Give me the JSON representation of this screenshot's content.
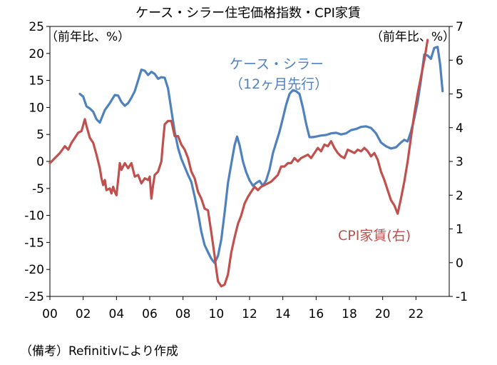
{
  "chart_data": {
    "type": "line",
    "title": "ケース・シラー住宅価格指数・CPI家賃",
    "left_axis": {
      "unit": "（前年比、%）",
      "ylim": [
        -25,
        25
      ],
      "ticks": [
        "25",
        "20",
        "15",
        "10",
        "5",
        "0",
        "-5",
        "-10",
        "-15",
        "-20",
        "-25"
      ]
    },
    "right_axis": {
      "unit": "（前年比、%）",
      "ylim": [
        -1,
        7
      ],
      "ticks": [
        "7",
        "6",
        "5",
        "4",
        "3",
        "2",
        "1",
        "0",
        "-1"
      ]
    },
    "x_axis": {
      "range": [
        2000,
        2024
      ],
      "ticks": [
        {
          "year": 2000,
          "label": "00"
        },
        {
          "year": 2002,
          "label": "02"
        },
        {
          "year": 2004,
          "label": "04"
        },
        {
          "year": 2006,
          "label": "06"
        },
        {
          "year": 2008,
          "label": "08"
        },
        {
          "year": 2010,
          "label": "10"
        },
        {
          "year": 2012,
          "label": "12"
        },
        {
          "year": 2014,
          "label": "14"
        },
        {
          "year": 2016,
          "label": "16"
        },
        {
          "year": 2018,
          "label": "18"
        },
        {
          "year": 2020,
          "label": "20"
        },
        {
          "year": 2022,
          "label": "22"
        }
      ]
    },
    "series": [
      {
        "name": "ケース・シラー（12ヶ月先行）",
        "label_line1": "ケース・シラー",
        "label_line2": "（12ヶ月先行）",
        "axis": "left",
        "color": "#4f81bd",
        "points": [
          [
            2001.8,
            12.5
          ],
          [
            2002.0,
            12.0
          ],
          [
            2002.2,
            10.2
          ],
          [
            2002.4,
            9.8
          ],
          [
            2002.6,
            9.2
          ],
          [
            2002.8,
            7.8
          ],
          [
            2003.0,
            7.2
          ],
          [
            2003.3,
            9.5
          ],
          [
            2003.6,
            10.8
          ],
          [
            2003.9,
            12.3
          ],
          [
            2004.1,
            12.2
          ],
          [
            2004.3,
            11.0
          ],
          [
            2004.5,
            10.3
          ],
          [
            2004.7,
            10.8
          ],
          [
            2004.9,
            11.8
          ],
          [
            2005.1,
            13.0
          ],
          [
            2005.3,
            15.0
          ],
          [
            2005.5,
            17.0
          ],
          [
            2005.7,
            16.8
          ],
          [
            2005.9,
            16.0
          ],
          [
            2006.1,
            16.6
          ],
          [
            2006.3,
            16.2
          ],
          [
            2006.5,
            15.3
          ],
          [
            2006.7,
            15.6
          ],
          [
            2006.9,
            15.5
          ],
          [
            2007.1,
            13.5
          ],
          [
            2007.3,
            9.5
          ],
          [
            2007.5,
            5.5
          ],
          [
            2007.7,
            2.5
          ],
          [
            2007.9,
            0.5
          ],
          [
            2008.1,
            -1.0
          ],
          [
            2008.3,
            -2.5
          ],
          [
            2008.5,
            -3.8
          ],
          [
            2008.7,
            -6.5
          ],
          [
            2008.9,
            -9.5
          ],
          [
            2009.1,
            -13.0
          ],
          [
            2009.3,
            -15.5
          ],
          [
            2009.5,
            -16.8
          ],
          [
            2009.7,
            -18.0
          ],
          [
            2009.9,
            -18.8
          ],
          [
            2010.1,
            -17.5
          ],
          [
            2010.3,
            -14.5
          ],
          [
            2010.5,
            -9.5
          ],
          [
            2010.7,
            -4.0
          ],
          [
            2010.9,
            -0.5
          ],
          [
            2011.1,
            3.0
          ],
          [
            2011.25,
            4.6
          ],
          [
            2011.4,
            3.0
          ],
          [
            2011.6,
            0.0
          ],
          [
            2011.8,
            -2.0
          ],
          [
            2012.0,
            -3.5
          ],
          [
            2012.2,
            -4.5
          ],
          [
            2012.4,
            -4.0
          ],
          [
            2012.6,
            -3.6
          ],
          [
            2012.8,
            -4.5
          ],
          [
            2013.0,
            -3.5
          ],
          [
            2013.2,
            -1.5
          ],
          [
            2013.4,
            1.5
          ],
          [
            2013.6,
            3.5
          ],
          [
            2013.8,
            5.5
          ],
          [
            2014.0,
            8.0
          ],
          [
            2014.2,
            10.5
          ],
          [
            2014.4,
            12.5
          ],
          [
            2014.6,
            13.2
          ],
          [
            2014.8,
            13.0
          ],
          [
            2015.0,
            12.5
          ],
          [
            2015.2,
            10.0
          ],
          [
            2015.4,
            7.0
          ],
          [
            2015.6,
            4.5
          ],
          [
            2015.8,
            4.5
          ],
          [
            2016.0,
            4.6
          ],
          [
            2016.3,
            4.8
          ],
          [
            2016.6,
            4.9
          ],
          [
            2016.9,
            5.2
          ],
          [
            2017.2,
            5.3
          ],
          [
            2017.5,
            5.0
          ],
          [
            2017.8,
            5.2
          ],
          [
            2018.1,
            5.8
          ],
          [
            2018.4,
            6.0
          ],
          [
            2018.7,
            6.4
          ],
          [
            2019.0,
            6.5
          ],
          [
            2019.3,
            6.2
          ],
          [
            2019.6,
            5.2
          ],
          [
            2019.9,
            3.5
          ],
          [
            2020.2,
            2.8
          ],
          [
            2020.5,
            2.4
          ],
          [
            2020.8,
            2.6
          ],
          [
            2021.1,
            3.5
          ],
          [
            2021.3,
            4.0
          ],
          [
            2021.5,
            3.7
          ],
          [
            2021.7,
            5.5
          ],
          [
            2021.9,
            8.0
          ],
          [
            2022.1,
            11.0
          ],
          [
            2022.3,
            15.0
          ],
          [
            2022.5,
            19.8
          ],
          [
            2022.7,
            19.6
          ],
          [
            2022.9,
            19.0
          ],
          [
            2023.1,
            21.0
          ],
          [
            2023.3,
            21.2
          ],
          [
            2023.45,
            18.0
          ],
          [
            2023.6,
            13.0
          ]
        ]
      },
      {
        "name": "CPI家賃(右)",
        "label": "CPI家賃(右)",
        "axis": "right",
        "color": "#c0504d",
        "points": [
          [
            2000.0,
            2.95
          ],
          [
            2000.3,
            3.1
          ],
          [
            2000.6,
            3.25
          ],
          [
            2000.9,
            3.45
          ],
          [
            2001.1,
            3.35
          ],
          [
            2001.3,
            3.55
          ],
          [
            2001.5,
            3.7
          ],
          [
            2001.7,
            3.85
          ],
          [
            2001.9,
            3.9
          ],
          [
            2002.1,
            4.25
          ],
          [
            2002.2,
            4.05
          ],
          [
            2002.4,
            3.7
          ],
          [
            2002.6,
            3.55
          ],
          [
            2002.8,
            3.2
          ],
          [
            2003.0,
            2.8
          ],
          [
            2003.1,
            2.5
          ],
          [
            2003.2,
            2.3
          ],
          [
            2003.3,
            2.45
          ],
          [
            2003.4,
            2.15
          ],
          [
            2003.6,
            2.2
          ],
          [
            2003.7,
            2.05
          ],
          [
            2003.8,
            2.25
          ],
          [
            2003.9,
            2.1
          ],
          [
            2004.0,
            2.0
          ],
          [
            2004.1,
            2.45
          ],
          [
            2004.2,
            2.95
          ],
          [
            2004.3,
            2.75
          ],
          [
            2004.5,
            2.95
          ],
          [
            2004.7,
            2.8
          ],
          [
            2004.9,
            2.95
          ],
          [
            2005.1,
            2.55
          ],
          [
            2005.3,
            2.6
          ],
          [
            2005.5,
            2.35
          ],
          [
            2005.7,
            2.5
          ],
          [
            2005.9,
            2.45
          ],
          [
            2006.0,
            2.55
          ],
          [
            2006.1,
            1.9
          ],
          [
            2006.2,
            2.3
          ],
          [
            2006.3,
            2.6
          ],
          [
            2006.5,
            2.7
          ],
          [
            2006.7,
            3.0
          ],
          [
            2006.8,
            3.6
          ],
          [
            2006.9,
            4.1
          ],
          [
            2007.1,
            4.2
          ],
          [
            2007.3,
            4.2
          ],
          [
            2007.5,
            3.75
          ],
          [
            2007.7,
            3.75
          ],
          [
            2007.9,
            3.5
          ],
          [
            2008.1,
            3.35
          ],
          [
            2008.3,
            3.1
          ],
          [
            2008.5,
            2.7
          ],
          [
            2008.7,
            2.5
          ],
          [
            2008.9,
            2.1
          ],
          [
            2009.1,
            1.9
          ],
          [
            2009.3,
            1.6
          ],
          [
            2009.5,
            1.55
          ],
          [
            2009.7,
            0.9
          ],
          [
            2009.9,
            0.2
          ],
          [
            2010.0,
            -0.2
          ],
          [
            2010.1,
            -0.55
          ],
          [
            2010.3,
            -0.7
          ],
          [
            2010.5,
            -0.65
          ],
          [
            2010.7,
            -0.35
          ],
          [
            2010.9,
            0.3
          ],
          [
            2011.1,
            0.75
          ],
          [
            2011.3,
            1.15
          ],
          [
            2011.5,
            1.4
          ],
          [
            2011.7,
            1.75
          ],
          [
            2011.9,
            1.95
          ],
          [
            2012.1,
            2.1
          ],
          [
            2012.3,
            2.25
          ],
          [
            2012.5,
            2.15
          ],
          [
            2012.7,
            2.25
          ],
          [
            2012.9,
            2.3
          ],
          [
            2013.1,
            2.35
          ],
          [
            2013.3,
            2.4
          ],
          [
            2013.5,
            2.5
          ],
          [
            2013.7,
            2.6
          ],
          [
            2013.9,
            2.85
          ],
          [
            2014.1,
            2.85
          ],
          [
            2014.3,
            2.95
          ],
          [
            2014.5,
            2.95
          ],
          [
            2014.7,
            3.1
          ],
          [
            2014.9,
            3.0
          ],
          [
            2015.1,
            3.1
          ],
          [
            2015.3,
            3.15
          ],
          [
            2015.5,
            3.2
          ],
          [
            2015.7,
            3.1
          ],
          [
            2015.9,
            3.25
          ],
          [
            2016.1,
            3.4
          ],
          [
            2016.3,
            3.3
          ],
          [
            2016.5,
            3.5
          ],
          [
            2016.7,
            3.45
          ],
          [
            2016.9,
            3.6
          ],
          [
            2017.1,
            3.4
          ],
          [
            2017.3,
            3.25
          ],
          [
            2017.5,
            3.15
          ],
          [
            2017.7,
            3.1
          ],
          [
            2017.9,
            3.35
          ],
          [
            2018.1,
            3.3
          ],
          [
            2018.3,
            3.25
          ],
          [
            2018.5,
            3.35
          ],
          [
            2018.7,
            3.3
          ],
          [
            2018.9,
            3.4
          ],
          [
            2019.1,
            3.3
          ],
          [
            2019.3,
            3.15
          ],
          [
            2019.5,
            3.25
          ],
          [
            2019.7,
            3.05
          ],
          [
            2019.9,
            2.7
          ],
          [
            2020.1,
            2.45
          ],
          [
            2020.3,
            2.15
          ],
          [
            2020.5,
            1.85
          ],
          [
            2020.7,
            1.7
          ],
          [
            2020.9,
            1.45
          ],
          [
            2021.1,
            1.9
          ],
          [
            2021.3,
            2.4
          ],
          [
            2021.5,
            3.0
          ],
          [
            2021.7,
            3.7
          ],
          [
            2021.9,
            4.4
          ],
          [
            2022.1,
            5.0
          ],
          [
            2022.3,
            5.5
          ],
          [
            2022.5,
            6.0
          ],
          [
            2022.7,
            6.6
          ]
        ]
      }
    ]
  },
  "footnote": "（備考）Refinitivにより作成"
}
